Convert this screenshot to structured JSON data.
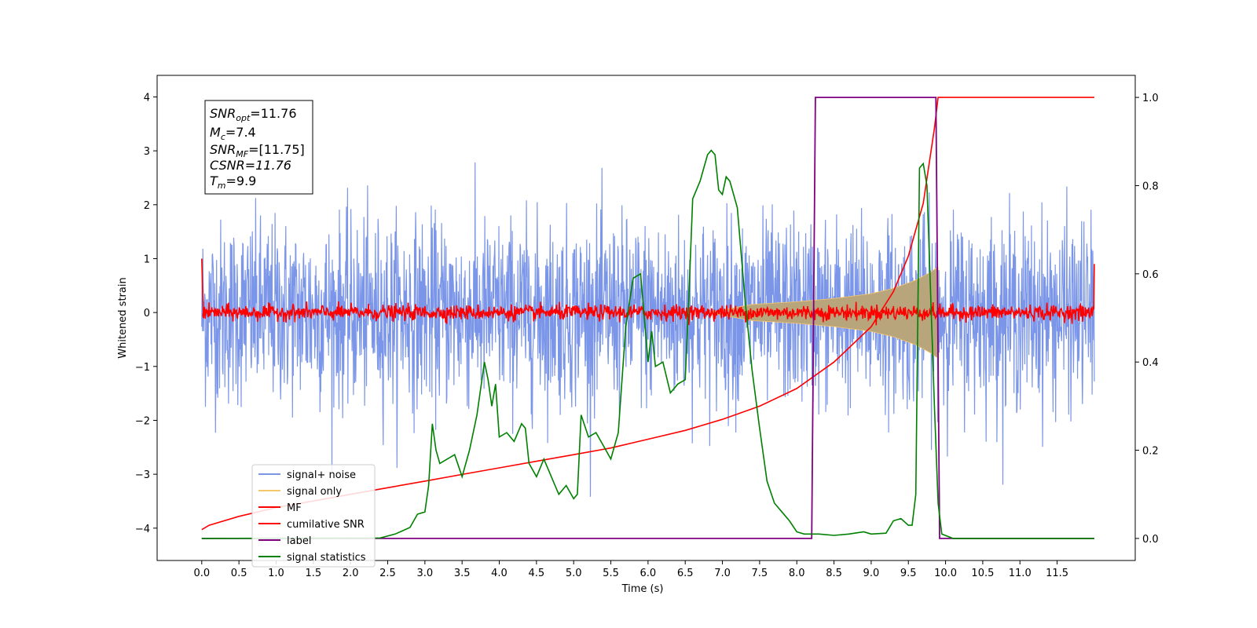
{
  "chart_data": {
    "type": "line",
    "xlabel": "Time (s)",
    "ylabel": "Whitened strain",
    "xlim": [
      -0.6,
      12.55
    ],
    "ylim_left": [
      -4.6,
      4.4
    ],
    "ylim_right": [
      -0.05,
      1.05
    ],
    "x_ticks": [
      "0.0",
      "0.5",
      "1.0",
      "1.5",
      "2.0",
      "2.5",
      "3.0",
      "3.5",
      "4.0",
      "4.5",
      "5.0",
      "5.5",
      "6.0",
      "6.5",
      "7.0",
      "7.5",
      "8.0",
      "8.5",
      "9.0",
      "9.5",
      "10.0",
      "10.5",
      "11.0",
      "11.5"
    ],
    "y_ticks_left": [
      -4,
      -3,
      -2,
      -1,
      0,
      1,
      2,
      3,
      4
    ],
    "y_ticks_right": [
      "0.0",
      "0.2",
      "0.4",
      "0.6",
      "0.8",
      "1.0"
    ],
    "legend_placement": "lower-left",
    "colors": {
      "signal_noise": "#7b96e8",
      "signal_only": "#f5c66a",
      "signal_only_fill": "#b8a57c",
      "mf": "#ff0000",
      "cumulative_snr": "#ff0000",
      "label": "#800080",
      "signal_statistics": "#008000"
    },
    "series": [
      {
        "name": "signal+ noise",
        "axis": "left",
        "note": "whitened noise with std ~0.85, spanning x 0.0 to 12.0"
      },
      {
        "name": "signal only",
        "axis": "left",
        "envelope": {
          "x": [
            7.4,
            8.0,
            8.5,
            9.0,
            9.3,
            9.6,
            9.8,
            9.9
          ],
          "amp": [
            0.15,
            0.2,
            0.26,
            0.35,
            0.45,
            0.6,
            0.75,
            0.85
          ]
        }
      },
      {
        "name": "MF",
        "axis": "left",
        "note": "small noise ~0.08 amplitude around 0 with ends near 1.0"
      },
      {
        "name": "cumilative SNR",
        "axis": "right",
        "x": [
          0.0,
          0.1,
          0.5,
          1.0,
          1.5,
          2.0,
          2.5,
          3.0,
          3.5,
          4.0,
          4.5,
          5.0,
          5.5,
          6.0,
          6.5,
          7.0,
          7.5,
          8.0,
          8.5,
          9.0,
          9.3,
          9.5,
          9.7,
          9.85,
          9.9,
          12.0
        ],
        "values": [
          0.02,
          0.03,
          0.05,
          0.07,
          0.085,
          0.1,
          0.115,
          0.13,
          0.145,
          0.16,
          0.175,
          0.19,
          0.205,
          0.225,
          0.245,
          0.27,
          0.3,
          0.34,
          0.4,
          0.48,
          0.56,
          0.64,
          0.76,
          0.93,
          1.0,
          1.0
        ]
      },
      {
        "name": "label",
        "axis": "right",
        "x": [
          0.0,
          8.2,
          8.25,
          9.87,
          9.92,
          12.0
        ],
        "values": [
          0.0,
          0.0,
          1.0,
          1.0,
          0.0,
          0.0
        ]
      },
      {
        "name": "signal statistics",
        "axis": "right",
        "x": [
          0.0,
          2.4,
          2.6,
          2.8,
          2.9,
          3.0,
          3.05,
          3.1,
          3.15,
          3.2,
          3.4,
          3.5,
          3.6,
          3.7,
          3.8,
          3.85,
          3.9,
          3.95,
          4.0,
          4.1,
          4.2,
          4.3,
          4.35,
          4.4,
          4.5,
          4.6,
          4.7,
          4.75,
          4.8,
          4.9,
          5.0,
          5.05,
          5.1,
          5.2,
          5.3,
          5.4,
          5.5,
          5.6,
          5.7,
          5.8,
          5.9,
          6.0,
          6.05,
          6.1,
          6.2,
          6.3,
          6.4,
          6.5,
          6.55,
          6.6,
          6.7,
          6.8,
          6.85,
          6.9,
          6.95,
          7.0,
          7.05,
          7.1,
          7.2,
          7.3,
          7.4,
          7.5,
          7.6,
          7.7,
          7.8,
          7.9,
          8.0,
          8.1,
          8.3,
          8.5,
          8.7,
          8.9,
          9.0,
          9.2,
          9.3,
          9.4,
          9.5,
          9.55,
          9.6,
          9.65,
          9.7,
          9.75,
          9.85,
          9.9,
          9.95,
          10.1,
          11.0,
          12.0
        ],
        "values": [
          0.0,
          0.001,
          0.01,
          0.025,
          0.055,
          0.06,
          0.12,
          0.26,
          0.2,
          0.17,
          0.19,
          0.14,
          0.2,
          0.28,
          0.4,
          0.36,
          0.3,
          0.35,
          0.23,
          0.24,
          0.22,
          0.26,
          0.25,
          0.17,
          0.14,
          0.18,
          0.14,
          0.12,
          0.1,
          0.12,
          0.09,
          0.1,
          0.28,
          0.23,
          0.24,
          0.21,
          0.18,
          0.24,
          0.48,
          0.59,
          0.6,
          0.4,
          0.47,
          0.39,
          0.4,
          0.33,
          0.35,
          0.36,
          0.55,
          0.77,
          0.81,
          0.87,
          0.88,
          0.87,
          0.79,
          0.78,
          0.82,
          0.81,
          0.75,
          0.55,
          0.38,
          0.25,
          0.13,
          0.08,
          0.06,
          0.04,
          0.015,
          0.01,
          0.01,
          0.007,
          0.01,
          0.015,
          0.01,
          0.012,
          0.04,
          0.045,
          0.03,
          0.03,
          0.1,
          0.84,
          0.85,
          0.8,
          0.3,
          0.08,
          0.01,
          0.0,
          0.0,
          0.0
        ]
      }
    ]
  },
  "annotation": {
    "snr_opt_main": "SNR",
    "snr_opt_sub": "opt",
    "snr_opt_val": "=11.76",
    "mc_main": "M",
    "mc_sub": "c",
    "mc_val": "=7.4",
    "snr_mf_main": "SNR",
    "snr_mf_sub": "MF",
    "snr_mf_val": "=[11.75]",
    "csnr": "CSNR=11.76",
    "tm_main": "T",
    "tm_sub": "m",
    "tm_val": "=9.9"
  },
  "legend": {
    "items": [
      "signal+ noise",
      "signal only",
      "MF",
      "cumilative SNR",
      "label",
      "signal statistics"
    ]
  }
}
